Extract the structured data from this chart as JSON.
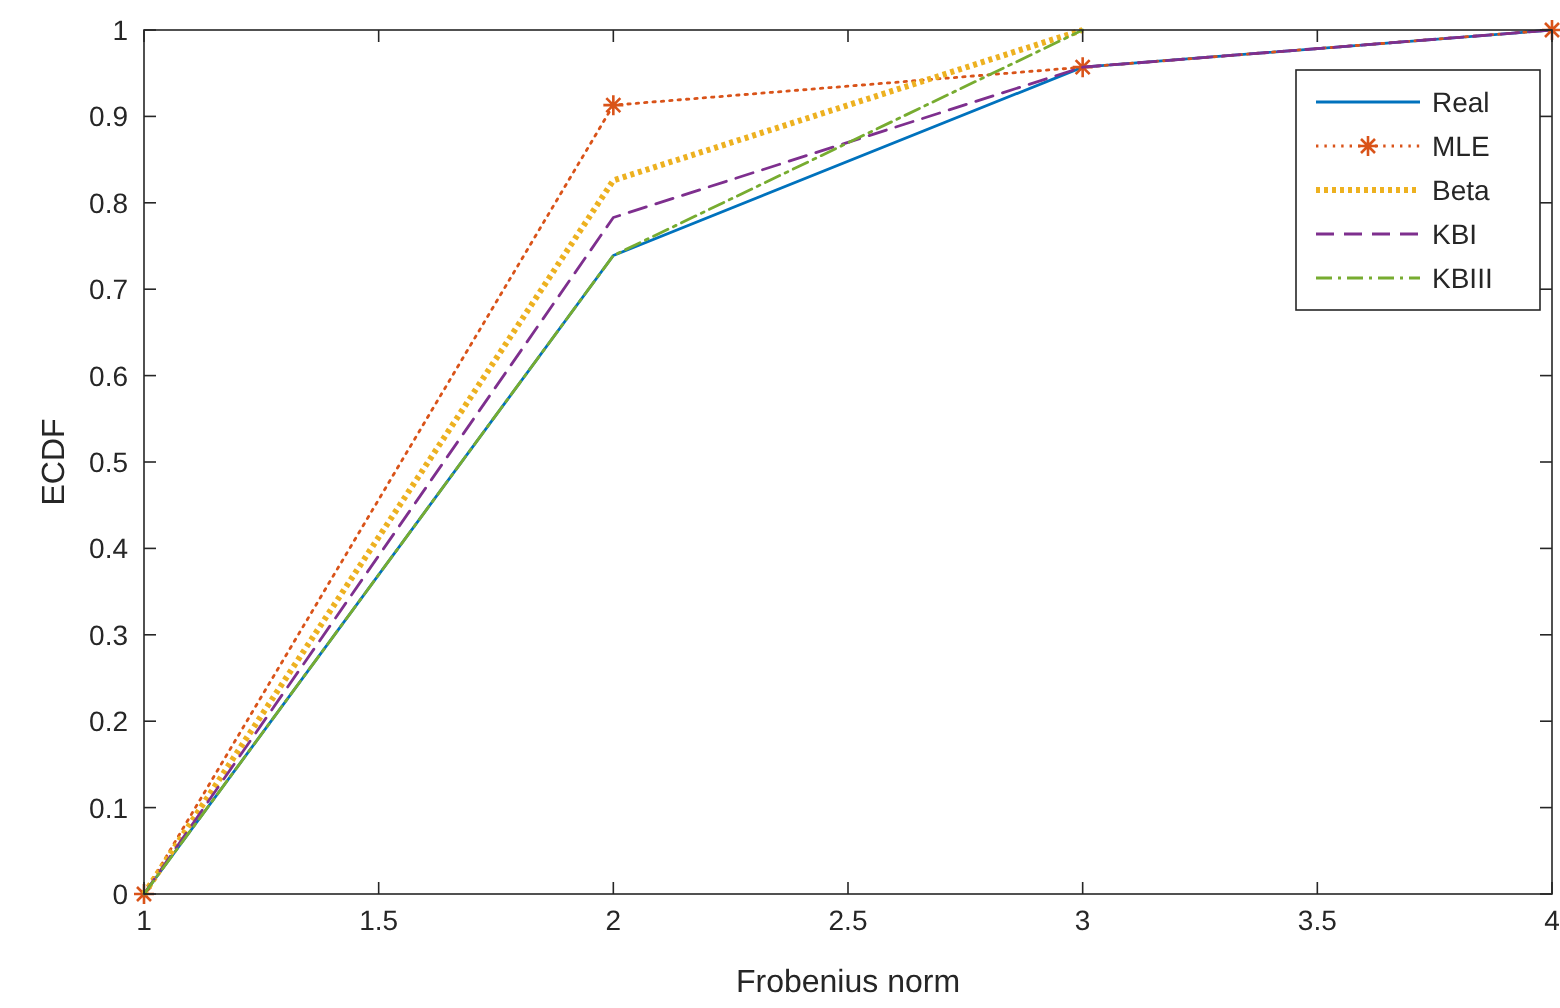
{
  "chart_data": {
    "type": "line",
    "xlabel": "Frobenius norm",
    "ylabel": "ECDF",
    "x": [
      1,
      2,
      3,
      4
    ],
    "xlim": [
      1,
      4
    ],
    "xticks": [
      1,
      {
        "value": 1.5,
        "label": "1.5"
      },
      2,
      {
        "value": 2.5,
        "label": "2.5"
      },
      3,
      {
        "value": 3.5,
        "label": "3.5"
      },
      4
    ],
    "ylim": [
      0,
      1
    ],
    "yticks": [
      0,
      0.1,
      0.2,
      0.3,
      0.4,
      0.5,
      0.6,
      0.7,
      0.8,
      0.9,
      1
    ],
    "grid": false,
    "legend": "top right",
    "series": [
      {
        "name": "Real",
        "color": "#0072bd",
        "values": [
          0,
          0.739,
          0.957,
          1
        ],
        "line_style": "solid",
        "marker": "none"
      },
      {
        "name": "MLE",
        "color": "#d95319",
        "values": [
          0,
          0.913,
          0.957,
          1
        ],
        "line_style": "dotted",
        "marker": "cross"
      },
      {
        "name": "Beta",
        "color": "#edb120",
        "values": [
          0,
          0.826,
          1,
          null
        ],
        "line_style": "dotted",
        "marker": "none"
      },
      {
        "name": "KBI",
        "color": "#7e2f8e",
        "values": [
          0,
          0.783,
          0.957,
          1
        ],
        "line_style": "dashed",
        "marker": "none"
      },
      {
        "name": "KBIII",
        "color": "#77ac30",
        "values": [
          0,
          0.739,
          1,
          null
        ],
        "line_style": "dashdot",
        "marker": "none"
      }
    ]
  }
}
